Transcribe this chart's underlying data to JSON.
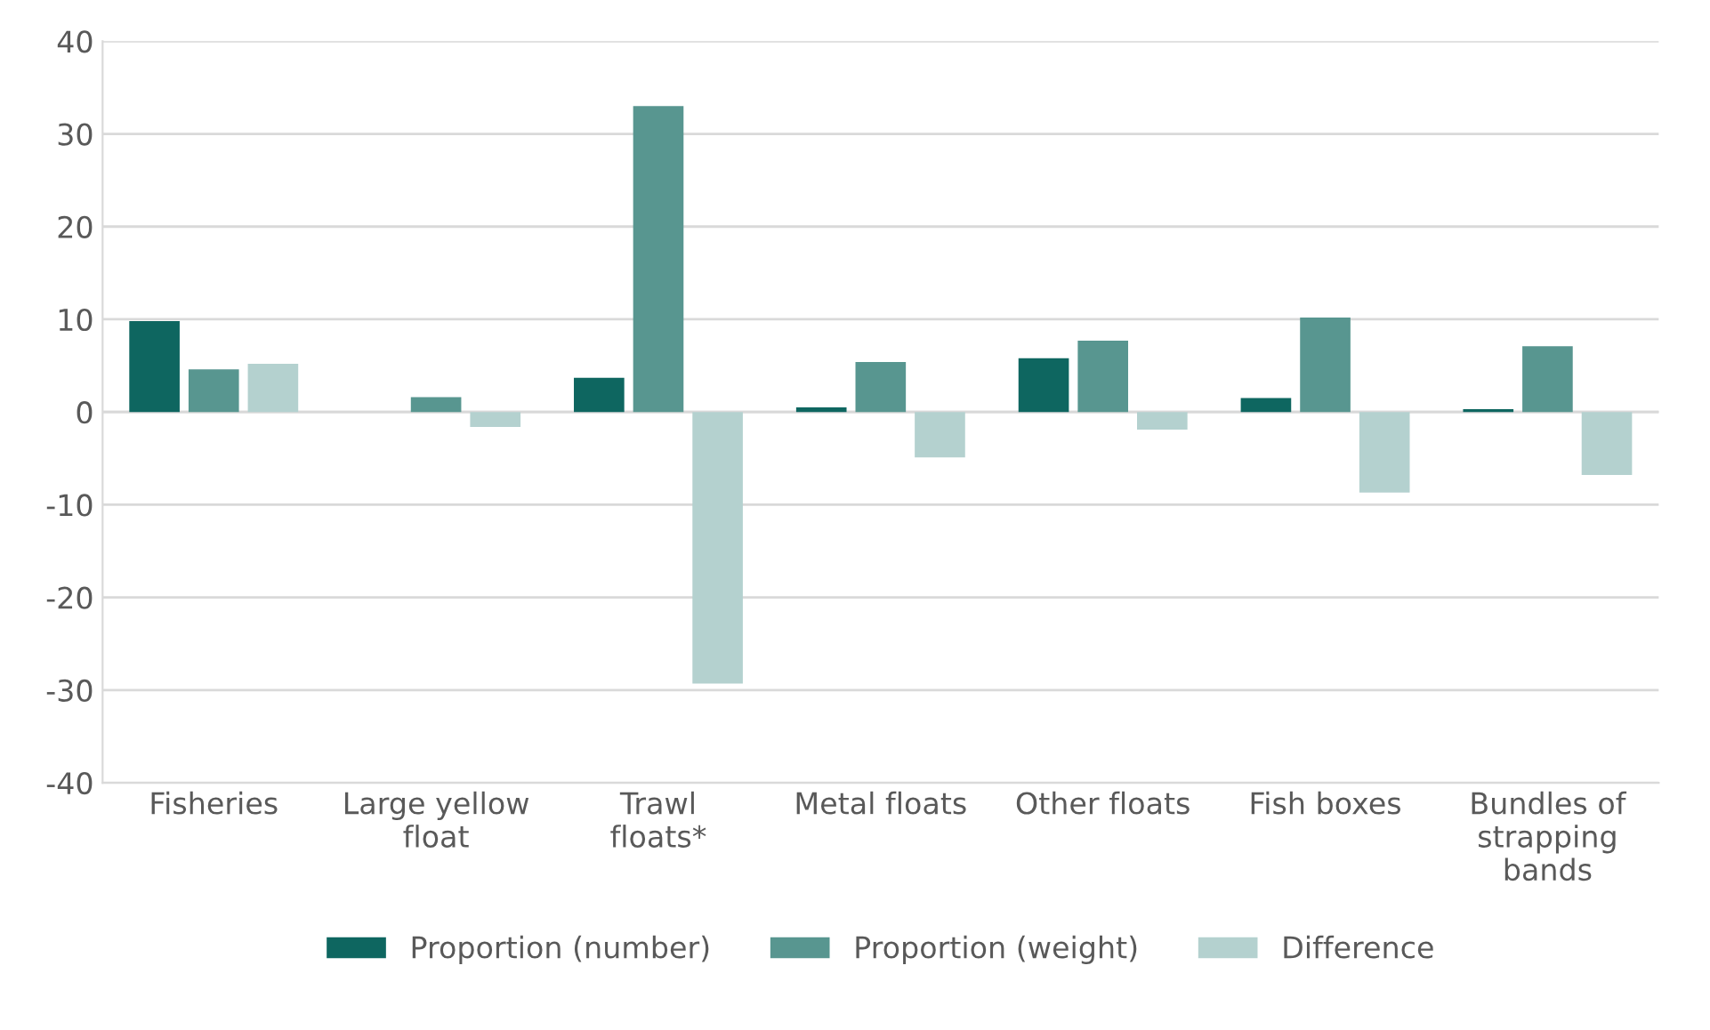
{
  "chart_data": {
    "type": "bar",
    "categories": [
      "Fisheries",
      "Large yellow\nfloat",
      "Trawl\nfloats*",
      "Metal floats",
      "Other floats",
      "Fish boxes",
      "Bundles of\nstrapping\nbands"
    ],
    "series": [
      {
        "name": "Proportion (number)",
        "color": "#0e6660",
        "values": [
          9.8,
          0,
          3.7,
          0.5,
          5.8,
          1.5,
          0.3
        ]
      },
      {
        "name": "Proportion (weight)",
        "color": "#589690",
        "values": [
          4.6,
          1.6,
          33,
          5.4,
          7.7,
          10.2,
          7.1
        ]
      },
      {
        "name": "Difference",
        "color": "#b4d1cf",
        "values": [
          5.2,
          -1.6,
          -29.3,
          -4.9,
          -1.9,
          -8.7,
          -6.8
        ]
      }
    ],
    "ylim": [
      -40,
      40
    ],
    "yticks": [
      -40,
      -30,
      -20,
      -10,
      0,
      10,
      20,
      30,
      40
    ],
    "grid": "y",
    "legend": "bottom"
  }
}
